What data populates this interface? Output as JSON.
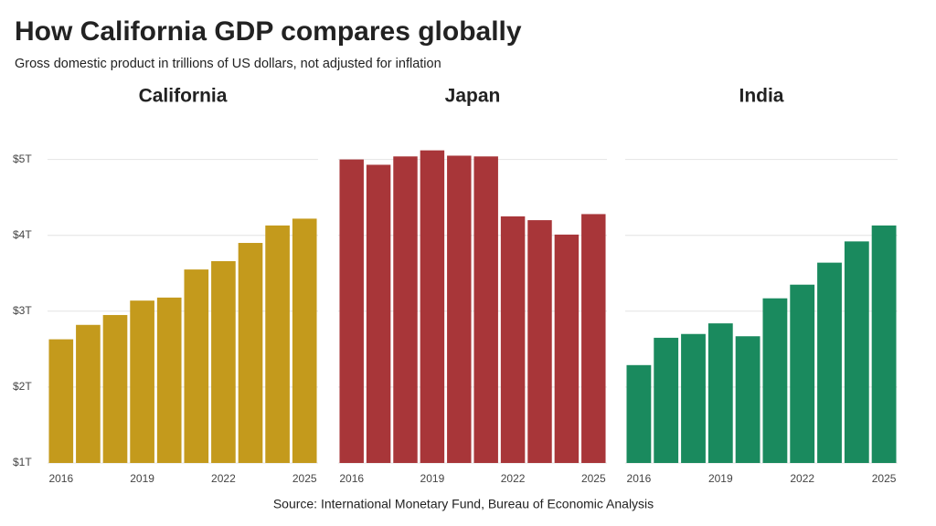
{
  "title": "How California GDP compares globally",
  "subtitle": "Gross domestic product in trillions of US dollars, not adjusted for inflation",
  "source": "Source: International Monetary Fund, Bureau of Economic Analysis",
  "chart_data": [
    {
      "type": "bar",
      "title": "California",
      "categories": [
        "2016",
        null,
        null,
        "2019",
        null,
        null,
        "2022",
        null,
        null,
        "2025"
      ],
      "values": [
        2.63,
        2.82,
        2.95,
        3.14,
        3.18,
        3.55,
        3.66,
        3.9,
        4.13,
        4.22
      ],
      "color": "#c49a1c",
      "ylim": [
        1,
        5.2
      ],
      "yticks": [
        {
          "value": 1,
          "label": "$1T"
        },
        {
          "value": 2,
          "label": "$2T"
        },
        {
          "value": 3,
          "label": "$3T"
        },
        {
          "value": 4,
          "label": "$4T"
        },
        {
          "value": 5,
          "label": "$5T"
        }
      ],
      "grid": true
    },
    {
      "type": "bar",
      "title": "Japan",
      "categories": [
        "2016",
        null,
        null,
        "2019",
        null,
        null,
        "2022",
        null,
        null,
        "2025"
      ],
      "values": [
        5.0,
        4.93,
        5.04,
        5.12,
        5.05,
        5.04,
        4.25,
        4.2,
        4.01,
        4.28
      ],
      "color": "#a83639",
      "ylim": [
        1,
        5.2
      ],
      "yticks": [
        1,
        2,
        3,
        4,
        5
      ],
      "grid": true
    },
    {
      "type": "bar",
      "title": "India",
      "categories": [
        "2016",
        null,
        null,
        "2019",
        null,
        null,
        "2022",
        null,
        null,
        "2025"
      ],
      "values": [
        2.29,
        2.65,
        2.7,
        2.84,
        2.67,
        3.17,
        3.35,
        3.64,
        3.92,
        4.13
      ],
      "color": "#1a8a5e",
      "ylim": [
        1,
        5.2
      ],
      "yticks": [
        1,
        2,
        3,
        4,
        5
      ],
      "grid": true
    }
  ]
}
